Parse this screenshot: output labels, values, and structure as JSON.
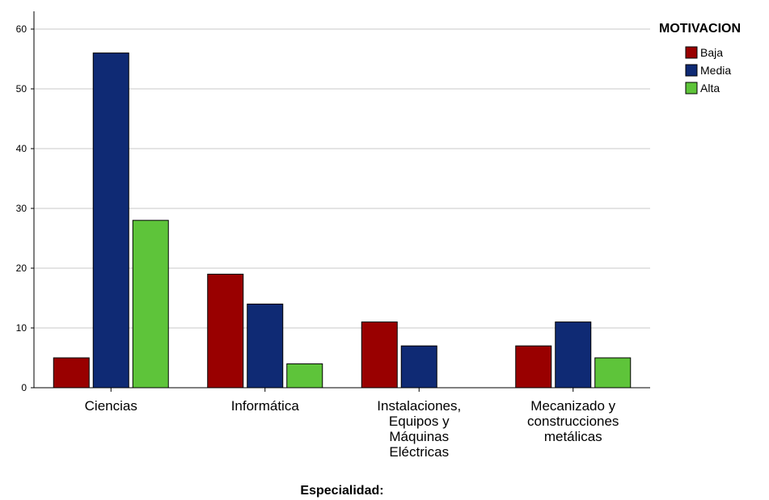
{
  "chart_data": {
    "type": "bar",
    "xlabel": "Especialidad:",
    "ylabel": "",
    "ylim": [
      0,
      60
    ],
    "yticks": [
      0,
      10,
      20,
      30,
      40,
      50,
      60
    ],
    "grid": true,
    "legend": {
      "title": "MOTIVACION",
      "placement": "right"
    },
    "categories": [
      [
        "Ciencias"
      ],
      [
        "Informática"
      ],
      [
        "Instalaciones,",
        "Equipos y",
        "Máquinas",
        "Eléctricas"
      ],
      [
        "Mecanizado y",
        "construcciones",
        "metálicas"
      ]
    ],
    "series": [
      {
        "name": "Baja",
        "color": "#990000",
        "values": [
          5,
          19,
          11,
          7
        ]
      },
      {
        "name": "Media",
        "color": "#0f2a74",
        "values": [
          56,
          14,
          7,
          11
        ]
      },
      {
        "name": "Alta",
        "color": "#5ec43a",
        "values": [
          28,
          4,
          null,
          5
        ]
      }
    ]
  }
}
